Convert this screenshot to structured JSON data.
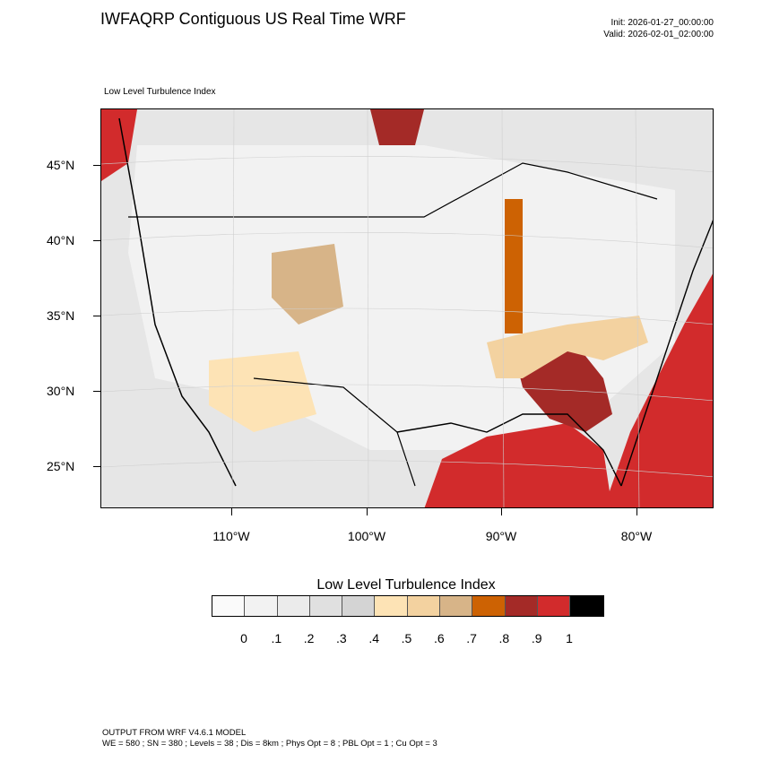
{
  "header": {
    "title": "IWFAQRP Contiguous US Real Time WRF",
    "init": "Init: 2026-01-27_00:00:00",
    "valid": "Valid: 2026-02-01_02:00:00",
    "field_name": "Low Level Turbulence Index"
  },
  "axes": {
    "lat_labels": [
      "45°N",
      "40°N",
      "35°N",
      "30°N",
      "25°N"
    ],
    "lon_labels": [
      "110°W",
      "100°W",
      "90°W",
      "80°W"
    ]
  },
  "colorbar": {
    "title": "Low Level Turbulence Index",
    "colors": [
      "#fafafa",
      "#f2f2f2",
      "#ebebeb",
      "#e0e0e0",
      "#d4d4d4",
      "#fde3b5",
      "#f3d2a0",
      "#d7b488",
      "#cd6203",
      "#a42a27",
      "#d22b2c",
      "#000000"
    ],
    "labels": [
      "0",
      ".1",
      ".2",
      ".3",
      ".4",
      ".5",
      ".6",
      ".7",
      ".8",
      ".9",
      "1"
    ]
  },
  "footer": {
    "line1": "OUTPUT FROM WRF V4.6.1 MODEL",
    "line2": "WE = 580 ; SN = 380 ; Levels = 38 ; Dis = 8km ; Phys Opt = 8 ; PBL Opt = 1 ; Cu Opt = 3"
  }
}
